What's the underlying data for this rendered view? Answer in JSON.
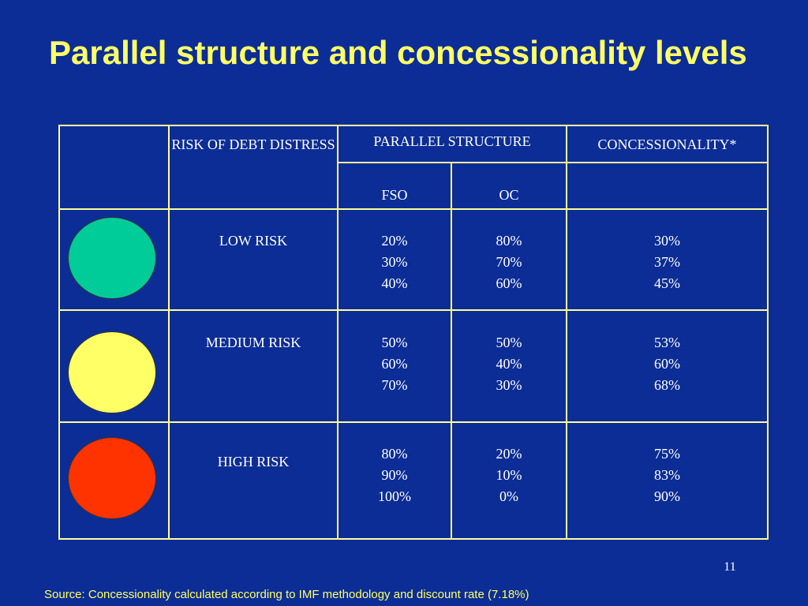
{
  "title": "Parallel structure and concessionality levels",
  "table": {
    "headers": {
      "risk": "RISK OF DEBT DISTRESS",
      "parallel": "PARALLEL STRUCTURE",
      "concessionality": "CONCESSIONALITY*",
      "fso": "FSO",
      "oc": "OC"
    },
    "rows": [
      {
        "light_color": "#00cc99",
        "risk": "LOW RISK",
        "fso": [
          "20%",
          "30%",
          "40%"
        ],
        "oc": [
          "80%",
          "70%",
          "60%"
        ],
        "concessionality": [
          "30%",
          "37%",
          "45%"
        ]
      },
      {
        "light_color": "#ffff66",
        "risk": "MEDIUM RISK",
        "fso": [
          "50%",
          "60%",
          "70%"
        ],
        "oc": [
          "50%",
          "40%",
          "30%"
        ],
        "concessionality": [
          "53%",
          "60%",
          "68%"
        ]
      },
      {
        "light_color": "#ff3300",
        "risk": "HIGH RISK",
        "fso": [
          "80%",
          "90%",
          "100%"
        ],
        "oc": [
          "20%",
          "10%",
          "0%"
        ],
        "concessionality": [
          "75%",
          "83%",
          "90%"
        ]
      }
    ]
  },
  "page_number": "11",
  "source": "Source: Concessionality calculated according to IMF methodology and discount rate (7.18%)",
  "colors": {
    "background": "#0c2d96",
    "title": "#ffff66",
    "grid": "#ffff99"
  }
}
